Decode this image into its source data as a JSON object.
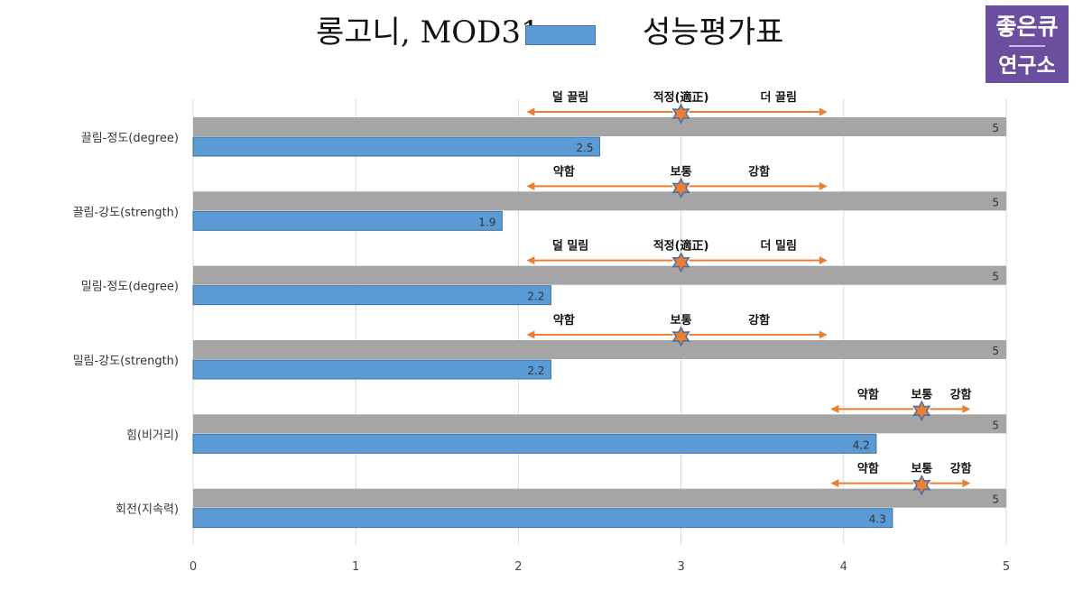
{
  "title": {
    "left": "롱고니, MOD31",
    "right": "성능평가표",
    "swatch_color": "#5b9bd5"
  },
  "logo": {
    "top": "좋은큐",
    "bottom": "연구소",
    "bg": "#6b4f9e"
  },
  "colors": {
    "max_bar": "#a5a5a5",
    "value_bar": "#5b9bd5",
    "value_bar_stroke": "#41719c",
    "arrow": "#ed7d31",
    "star_fill": "#ed7d31",
    "star_stroke": "#4a6fa5",
    "grid": "#d9d9d9"
  },
  "chart_data": {
    "type": "bar",
    "orientation": "horizontal",
    "categories": [
      "끌림-정도(degree)",
      "끌림-강도(strength)",
      "밀림-정도(degree)",
      "밀림-강도(strength)",
      "힘(비거리)",
      "회전(지속력)"
    ],
    "series": [
      {
        "name": "",
        "color": "#a5a5a5",
        "values": [
          5,
          5,
          5,
          5,
          5,
          5
        ]
      },
      {
        "name": "MOD31",
        "color": "#5b9bd5",
        "values": [
          2.5,
          1.9,
          2.2,
          2.2,
          4.2,
          4.3
        ]
      }
    ],
    "xlim": [
      0,
      5
    ],
    "xticks": [
      "0",
      "1",
      "2",
      "3",
      "4",
      "5"
    ],
    "grid": true,
    "annotations": [
      {
        "left": "덜 끌림",
        "mid": "적정(適正)",
        "right": "더 끌림",
        "from": 2.05,
        "to": 3.9,
        "star": 3.0,
        "left_x": 2.32,
        "mid_x": 3.0,
        "right_x": 3.6
      },
      {
        "left": "약함",
        "mid": "보통",
        "right": "강함",
        "from": 2.05,
        "to": 3.9,
        "star": 3.0,
        "left_x": 2.28,
        "mid_x": 3.0,
        "right_x": 3.48
      },
      {
        "left": "덜 밀림",
        "mid": "적정(適正)",
        "right": "더 밀림",
        "from": 2.05,
        "to": 3.9,
        "star": 3.0,
        "left_x": 2.32,
        "mid_x": 3.0,
        "right_x": 3.6
      },
      {
        "left": "약함",
        "mid": "보통",
        "right": "강함",
        "from": 2.05,
        "to": 3.9,
        "star": 3.0,
        "left_x": 2.28,
        "mid_x": 3.0,
        "right_x": 3.48
      },
      {
        "left": "약함",
        "mid": "보통",
        "right": "강함",
        "from": 3.92,
        "to": 4.78,
        "star": 4.48,
        "left_x": 4.15,
        "mid_x": 4.48,
        "right_x": 4.72
      },
      {
        "left": "약함",
        "mid": "보통",
        "right": "강함",
        "from": 3.92,
        "to": 4.78,
        "star": 4.48,
        "left_x": 4.15,
        "mid_x": 4.48,
        "right_x": 4.72
      }
    ]
  }
}
